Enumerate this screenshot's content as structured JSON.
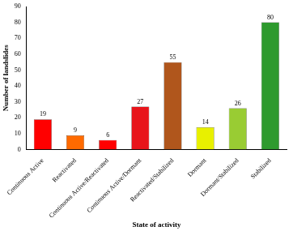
{
  "chart_data": {
    "type": "bar",
    "x_label": "State of activity",
    "y_label": "Number of landslides",
    "categories": [
      "Continuous Active",
      "Reactivated",
      "Continuous Active/Reactivated",
      "Continuous Active/Dormant",
      "Reactivated/Stabilized",
      "Dormant",
      "Dormant/Stabilized",
      "Stabilized"
    ],
    "values": [
      19,
      9,
      6,
      27,
      55,
      14,
      26,
      80
    ],
    "colors": [
      "#ff0000",
      "#ff6a00",
      "#ff0000",
      "#e8141a",
      "#b0561c",
      "#e8f000",
      "#99cc33",
      "#2e9a2e"
    ],
    "ylim": [
      0,
      90
    ],
    "yticks": [
      0,
      10,
      20,
      30,
      40,
      50,
      60,
      70,
      80,
      90
    ],
    "grid": false,
    "data_labels": true
  }
}
